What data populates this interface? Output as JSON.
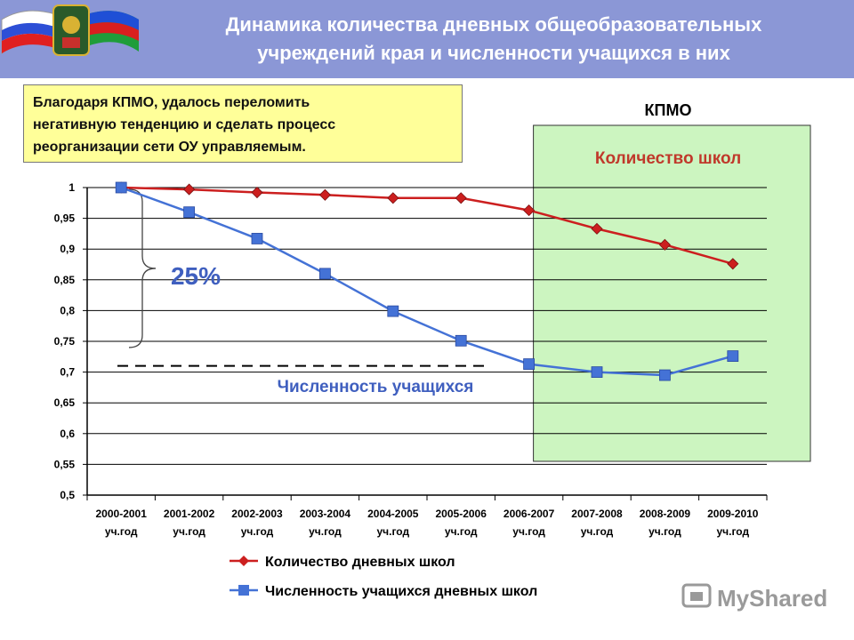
{
  "header": {
    "title_line1": "Динамика количества дневных общеобразовательных",
    "title_line2": "учреждений края и численности учащихся в них"
  },
  "note": {
    "line1": "Благодаря КПМО, удалось переломить",
    "line2": "негативную тенденцию и сделать процесс",
    "line3": "реорганизации сети ОУ управляемым."
  },
  "chart_data": {
    "type": "line",
    "categories": [
      [
        "2000-2001",
        "уч.год"
      ],
      [
        "2001-2002",
        "уч.год"
      ],
      [
        "2002-2003",
        "уч.год"
      ],
      [
        "2003-2004",
        "уч.год"
      ],
      [
        "2004-2005",
        "уч.год"
      ],
      [
        "2005-2006",
        "уч.год"
      ],
      [
        "2006-2007",
        "уч.год"
      ],
      [
        "2007-2008",
        "уч.год"
      ],
      [
        "2008-2009",
        "уч.год"
      ],
      [
        "2009-2010",
        "уч.год"
      ]
    ],
    "y_ticks": [
      "0,5",
      "0,55",
      "0,6",
      "0,65",
      "0,7",
      "0,75",
      "0,8",
      "0,85",
      "0,9",
      "0,95",
      "1"
    ],
    "ylim": [
      0.5,
      1.0
    ],
    "grid": true,
    "legend_position": "bottom",
    "series": [
      {
        "name": "Количество дневных школ",
        "color": "#cc1f1f",
        "marker": "diamond",
        "values": [
          1.0,
          0.997,
          0.992,
          0.988,
          0.983,
          0.983,
          0.963,
          0.933,
          0.907,
          0.876
        ]
      },
      {
        "name": "Численность учащихся дневных школ",
        "color": "#4472d6",
        "marker": "square",
        "values": [
          1.0,
          0.96,
          0.917,
          0.86,
          0.799,
          0.751,
          0.713,
          0.7,
          0.695,
          0.726
        ]
      }
    ],
    "annotations": {
      "kpmo_label": "КПМО",
      "kpmo_region_start_category": "2006-2007",
      "schools_label": "Количество школ",
      "students_label": "Численность учащихся",
      "drop_label": "25%",
      "reference_level": 0.71
    }
  },
  "colors": {
    "header_bg": "#8b97d6",
    "kpmo_region": "#ccf5c0",
    "schools": "#cc1f1f",
    "students": "#4472d6"
  },
  "watermark": {
    "text": "MyShared"
  }
}
